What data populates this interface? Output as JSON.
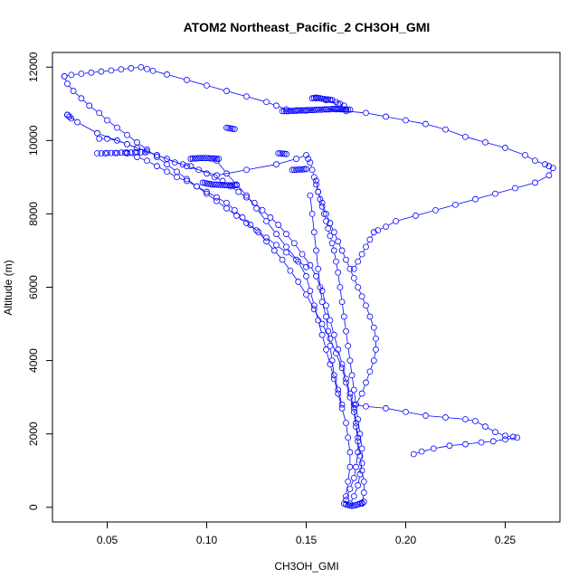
{
  "chart_data": {
    "type": "scatter",
    "title": "ATOM2 Northeast_Pacific_2 CH3OH_GMI",
    "xlabel": "CH3OH_GMI",
    "ylabel": "Altitude (m)",
    "xlim": [
      0.0225,
      0.2775
    ],
    "ylim": [
      -400,
      12400
    ],
    "xticks": [
      0.05,
      0.1,
      0.15,
      0.2,
      0.25
    ],
    "xtick_labels": [
      "0.05",
      "0.10",
      "0.15",
      "0.20",
      "0.25"
    ],
    "yticks": [
      0,
      2000,
      4000,
      6000,
      8000,
      10000,
      12000
    ],
    "ytick_labels": [
      "0",
      "2000",
      "4000",
      "6000",
      "8000",
      "10000",
      "12000"
    ],
    "marker": "open-circle",
    "color": "#0000ff",
    "grid": false,
    "legend": "none",
    "series": [
      {
        "style": "points-and-lines",
        "x": [
          0.172,
          0.174,
          0.176,
          0.177,
          0.178,
          0.178,
          0.177,
          0.176,
          0.175,
          0.174,
          0.173,
          0.172,
          0.171,
          0.17,
          0.169,
          0.168,
          0.167,
          0.166,
          0.165,
          0.164,
          0.163,
          0.162,
          0.161,
          0.16,
          0.159,
          0.158,
          0.157,
          0.156,
          0.155,
          0.154,
          0.153,
          0.152,
          0.151,
          0.15,
          0.145,
          0.135,
          0.12,
          0.105,
          0.09,
          0.075,
          0.06,
          0.045,
          0.035,
          0.03
        ],
        "y": [
          100,
          300,
          600,
          900,
          1200,
          1600,
          2000,
          2400,
          2800,
          3200,
          3600,
          4000,
          4400,
          4800,
          5200,
          5600,
          6000,
          6400,
          6700,
          7000,
          7200,
          7400,
          7600,
          7800,
          8000,
          8200,
          8400,
          8600,
          8800,
          9000,
          9200,
          9400,
          9500,
          9600,
          9500,
          9350,
          9200,
          9050,
          9300,
          9600,
          9900,
          10200,
          10500,
          10700
        ]
      },
      {
        "style": "points-and-lines",
        "x": [
          0.17,
          0.172,
          0.174,
          0.175,
          0.176,
          0.176,
          0.175,
          0.174,
          0.172,
          0.17,
          0.168,
          0.166,
          0.164,
          0.162,
          0.16,
          0.158,
          0.155,
          0.152,
          0.148,
          0.144,
          0.14,
          0.136,
          0.132,
          0.128,
          0.124,
          0.12,
          0.116,
          0.112,
          0.108,
          0.104,
          0.1,
          0.096,
          0.092,
          0.088,
          0.084,
          0.08,
          0.075,
          0.07,
          0.065,
          0.06,
          0.055,
          0.05,
          0.046
        ],
        "y": [
          200,
          500,
          800,
          1100,
          1500,
          1900,
          2300,
          2700,
          3100,
          3500,
          3900,
          4300,
          4700,
          5100,
          5500,
          5900,
          6300,
          6600,
          6900,
          7200,
          7450,
          7700,
          7900,
          8100,
          8300,
          8450,
          8600,
          8750,
          8900,
          9000,
          9100,
          9200,
          9300,
          9350,
          9400,
          9500,
          9600,
          9700,
          9800,
          9900,
          10000,
          10050,
          10050
        ]
      },
      {
        "style": "points-and-lines",
        "x": [
          0.178,
          0.179,
          0.179,
          0.178,
          0.177,
          0.176,
          0.175,
          0.174,
          0.172,
          0.17,
          0.168,
          0.165,
          0.162,
          0.158,
          0.154,
          0.15,
          0.146,
          0.142,
          0.138,
          0.134,
          0.13,
          0.126,
          0.122,
          0.118,
          0.114,
          0.11,
          0.105,
          0.1,
          0.095,
          0.09,
          0.085,
          0.08,
          0.075,
          0.07,
          0.065,
          0.06
        ],
        "y": [
          100,
          400,
          700,
          1000,
          1400,
          1800,
          2200,
          2600,
          3000,
          3400,
          3800,
          4200,
          4600,
          5000,
          5400,
          5800,
          6150,
          6450,
          6750,
          7000,
          7250,
          7500,
          7700,
          7900,
          8100,
          8300,
          8450,
          8600,
          8750,
          8900,
          9000,
          9150,
          9300,
          9450,
          9550,
          9650
        ]
      },
      {
        "style": "points-and-lines",
        "x": [
          0.17,
          0.171,
          0.172,
          0.172,
          0.171,
          0.17,
          0.168,
          0.166,
          0.164,
          0.162,
          0.16,
          0.158,
          0.156,
          0.154,
          0.152,
          0.15,
          0.146,
          0.14,
          0.135,
          0.13,
          0.125,
          0.12,
          0.115,
          0.11,
          0.105
        ],
        "y": [
          300,
          700,
          1100,
          1500,
          1900,
          2300,
          2700,
          3100,
          3500,
          3900,
          4300,
          4700,
          5100,
          5500,
          5900,
          6300,
          6700,
          7100,
          7450,
          7800,
          8150,
          8500,
          8800,
          9100,
          9450
        ]
      },
      {
        "style": "points-and-lines",
        "x": [
          0.175,
          0.178,
          0.18,
          0.182,
          0.184,
          0.185,
          0.185,
          0.184,
          0.182,
          0.18,
          0.178,
          0.176,
          0.174,
          0.172,
          0.17,
          0.168,
          0.166,
          0.164,
          0.162,
          0.16,
          0.158,
          0.156,
          0.155
        ],
        "y": [
          2800,
          3100,
          3400,
          3700,
          4000,
          4300,
          4600,
          4900,
          5200,
          5500,
          5750,
          6000,
          6250,
          6500,
          6750,
          7000,
          7250,
          7500,
          7750,
          8000,
          8300,
          8600,
          8900
        ]
      },
      {
        "style": "points-and-lines",
        "x": [
          0.168,
          0.166,
          0.164,
          0.163,
          0.162,
          0.161,
          0.16,
          0.158,
          0.157,
          0.156,
          0.155,
          0.154,
          0.153,
          0.152
        ],
        "y": [
          2800,
          3200,
          3600,
          4000,
          4400,
          4800,
          5200,
          5600,
          6000,
          6500,
          7000,
          7500,
          8000,
          8500
        ]
      },
      {
        "style": "points-and-lines",
        "x": [
          0.0285,
          0.032,
          0.037,
          0.042,
          0.047,
          0.052,
          0.057,
          0.062,
          0.067,
          0.07,
          0.073,
          0.08,
          0.09,
          0.1,
          0.11,
          0.12,
          0.13,
          0.135,
          0.14,
          0.145,
          0.15,
          0.155,
          0.16,
          0.165,
          0.17,
          0.166,
          0.16,
          0.155
        ],
        "y": [
          11750,
          11790,
          11820,
          11850,
          11880,
          11910,
          11940,
          11970,
          12000,
          11950,
          11900,
          11800,
          11650,
          11500,
          11350,
          11200,
          11050,
          10950,
          10850,
          10820,
          10820,
          10840,
          10850,
          10850,
          10850,
          11000,
          11100,
          11150
        ]
      },
      {
        "style": "points-and-lines",
        "x": [
          0.0285,
          0.03,
          0.033,
          0.037,
          0.041,
          0.046,
          0.05,
          0.055,
          0.06,
          0.065,
          0.07,
          0.075,
          0.08,
          0.085,
          0.09,
          0.095,
          0.1,
          0.105,
          0.11,
          0.115,
          0.12,
          0.125,
          0.13,
          0.135,
          0.14,
          0.145,
          0.15
        ],
        "y": [
          11750,
          11550,
          11350,
          11150,
          10950,
          10750,
          10550,
          10350,
          10150,
          9950,
          9750,
          9550,
          9350,
          9150,
          8950,
          8750,
          8550,
          8350,
          8150,
          7950,
          7750,
          7550,
          7350,
          7150,
          6950,
          6750,
          6550
        ]
      },
      {
        "style": "points-and-lines",
        "x": [
          0.16,
          0.17,
          0.18,
          0.19,
          0.2,
          0.21,
          0.22,
          0.23,
          0.24,
          0.25,
          0.26,
          0.265,
          0.27,
          0.272,
          0.274,
          0.272,
          0.265,
          0.255,
          0.245,
          0.235,
          0.225,
          0.215,
          0.205,
          0.195,
          0.19,
          0.186,
          0.184,
          0.182,
          0.18,
          0.178,
          0.176,
          0.174
        ],
        "y": [
          10850,
          10800,
          10750,
          10650,
          10550,
          10450,
          10300,
          10100,
          9950,
          9800,
          9600,
          9450,
          9350,
          9300,
          9250,
          9050,
          8850,
          8700,
          8550,
          8400,
          8250,
          8100,
          7950,
          7800,
          7650,
          7550,
          7500,
          7300,
          7100,
          6900,
          6700,
          6500
        ]
      },
      {
        "style": "points-and-lines",
        "x": [
          0.174,
          0.18,
          0.19,
          0.2,
          0.21,
          0.22,
          0.23,
          0.235,
          0.24,
          0.245,
          0.25,
          0.254,
          0.256,
          0.25,
          0.244,
          0.238,
          0.23,
          0.222,
          0.214,
          0.208,
          0.204
        ],
        "y": [
          2800,
          2750,
          2700,
          2600,
          2500,
          2450,
          2400,
          2350,
          2200,
          2050,
          1950,
          1920,
          1900,
          1850,
          1800,
          1770,
          1720,
          1680,
          1600,
          1520,
          1450
        ]
      },
      {
        "style": "points",
        "x": [
          0.138,
          0.139,
          0.14,
          0.141,
          0.142,
          0.143,
          0.144,
          0.145,
          0.146,
          0.147,
          0.148,
          0.149,
          0.15,
          0.151,
          0.152,
          0.153,
          0.154,
          0.155,
          0.156,
          0.157,
          0.158,
          0.159,
          0.16,
          0.161,
          0.162,
          0.163,
          0.164,
          0.165,
          0.166,
          0.167,
          0.168,
          0.169,
          0.17,
          0.171,
          0.172
        ],
        "y": [
          10800,
          10800,
          10800,
          10800,
          10810,
          10810,
          10810,
          10810,
          10820,
          10820,
          10820,
          10820,
          10820,
          10830,
          10830,
          10830,
          10830,
          10840,
          10840,
          10840,
          10840,
          10850,
          10850,
          10850,
          10850,
          10860,
          10860,
          10860,
          10860,
          10850,
          10850,
          10850,
          10840,
          10840,
          10840
        ]
      },
      {
        "style": "points",
        "x": [
          0.153,
          0.154,
          0.155,
          0.156,
          0.157,
          0.158,
          0.159,
          0.16,
          0.161,
          0.162,
          0.163,
          0.165,
          0.167,
          0.169
        ],
        "y": [
          11150,
          11160,
          11170,
          11160,
          11150,
          11140,
          11130,
          11120,
          11120,
          11110,
          11100,
          11050,
          11000,
          10950
        ]
      },
      {
        "style": "points",
        "x": [
          0.045,
          0.047,
          0.049,
          0.05,
          0.052,
          0.054,
          0.055,
          0.057,
          0.059,
          0.06,
          0.062,
          0.064,
          0.065,
          0.067,
          0.069
        ],
        "y": [
          9650,
          9650,
          9650,
          9660,
          9660,
          9660,
          9660,
          9670,
          9670,
          9670,
          9670,
          9680,
          9680,
          9680,
          9680
        ]
      },
      {
        "style": "points",
        "x": [
          0.092,
          0.093,
          0.094,
          0.095,
          0.096,
          0.097,
          0.098,
          0.099,
          0.1,
          0.101,
          0.102,
          0.103,
          0.104,
          0.105,
          0.106
        ],
        "y": [
          9500,
          9510,
          9510,
          9510,
          9520,
          9520,
          9520,
          9520,
          9520,
          9520,
          9510,
          9510,
          9510,
          9500,
          9500
        ]
      },
      {
        "style": "points",
        "x": [
          0.098,
          0.099,
          0.1,
          0.101,
          0.102,
          0.103,
          0.104,
          0.105,
          0.106,
          0.107,
          0.108,
          0.109,
          0.11,
          0.111,
          0.112,
          0.113,
          0.114,
          0.115
        ],
        "y": [
          8850,
          8840,
          8830,
          8820,
          8810,
          8800,
          8800,
          8800,
          8790,
          8790,
          8790,
          8780,
          8780,
          8780,
          8780,
          8780,
          8780,
          8780
        ]
      },
      {
        "style": "points",
        "x": [
          0.136,
          0.137,
          0.138,
          0.139,
          0.14
        ],
        "y": [
          9650,
          9650,
          9640,
          9640,
          9630
        ]
      },
      {
        "style": "points",
        "x": [
          0.143,
          0.144,
          0.145,
          0.146,
          0.147,
          0.148,
          0.149,
          0.15
        ],
        "y": [
          9200,
          9200,
          9200,
          9210,
          9210,
          9210,
          9220,
          9220
        ]
      },
      {
        "style": "points",
        "x": [
          0.11,
          0.111,
          0.112,
          0.113,
          0.114
        ],
        "y": [
          10350,
          10340,
          10330,
          10320,
          10310
        ]
      },
      {
        "style": "points",
        "x": [
          0.03,
          0.031,
          0.032
        ],
        "y": [
          10700,
          10650,
          10600
        ]
      },
      {
        "style": "points",
        "x": [
          0.169,
          0.17,
          0.171,
          0.172,
          0.173,
          0.174,
          0.175,
          0.176,
          0.177,
          0.178,
          0.179
        ],
        "y": [
          100,
          80,
          60,
          50,
          40,
          50,
          60,
          80,
          100,
          120,
          150
        ]
      }
    ]
  }
}
